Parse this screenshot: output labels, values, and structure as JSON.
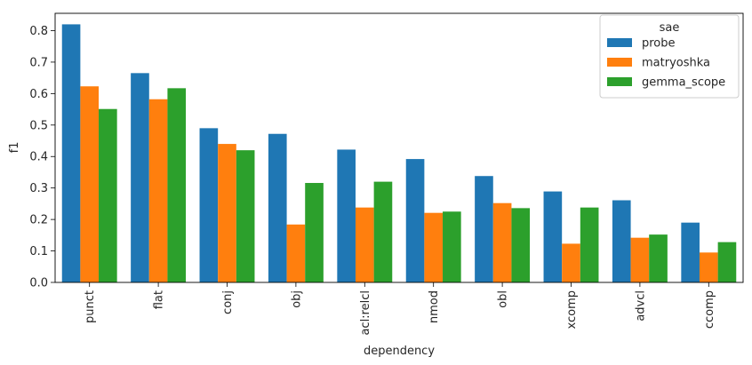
{
  "chart_data": {
    "type": "bar",
    "categories": [
      "punct",
      "flat",
      "conj",
      "obj",
      "acl:relcl",
      "nmod",
      "obl",
      "xcomp",
      "advcl",
      "ccomp"
    ],
    "series": [
      {
        "name": "probe",
        "color": "#1f77b4",
        "values": [
          0.82,
          0.665,
          0.49,
          0.472,
          0.422,
          0.392,
          0.338,
          0.289,
          0.261,
          0.19
        ]
      },
      {
        "name": "matryoshka",
        "color": "#ff7f0e",
        "values": [
          0.623,
          0.582,
          0.44,
          0.184,
          0.238,
          0.221,
          0.252,
          0.123,
          0.142,
          0.095
        ]
      },
      {
        "name": "gemma_scope",
        "color": "#2ca02c",
        "values": [
          0.551,
          0.617,
          0.42,
          0.316,
          0.32,
          0.225,
          0.236,
          0.238,
          0.152,
          0.128
        ]
      }
    ],
    "xlabel": "dependency",
    "ylabel": "f1",
    "ylim": [
      0,
      0.855
    ],
    "yticks": [
      "0.0",
      "0.1",
      "0.2",
      "0.3",
      "0.4",
      "0.5",
      "0.6",
      "0.7",
      "0.8"
    ],
    "legend": {
      "title": "sae",
      "placement": "top-right"
    },
    "grid": false
  }
}
